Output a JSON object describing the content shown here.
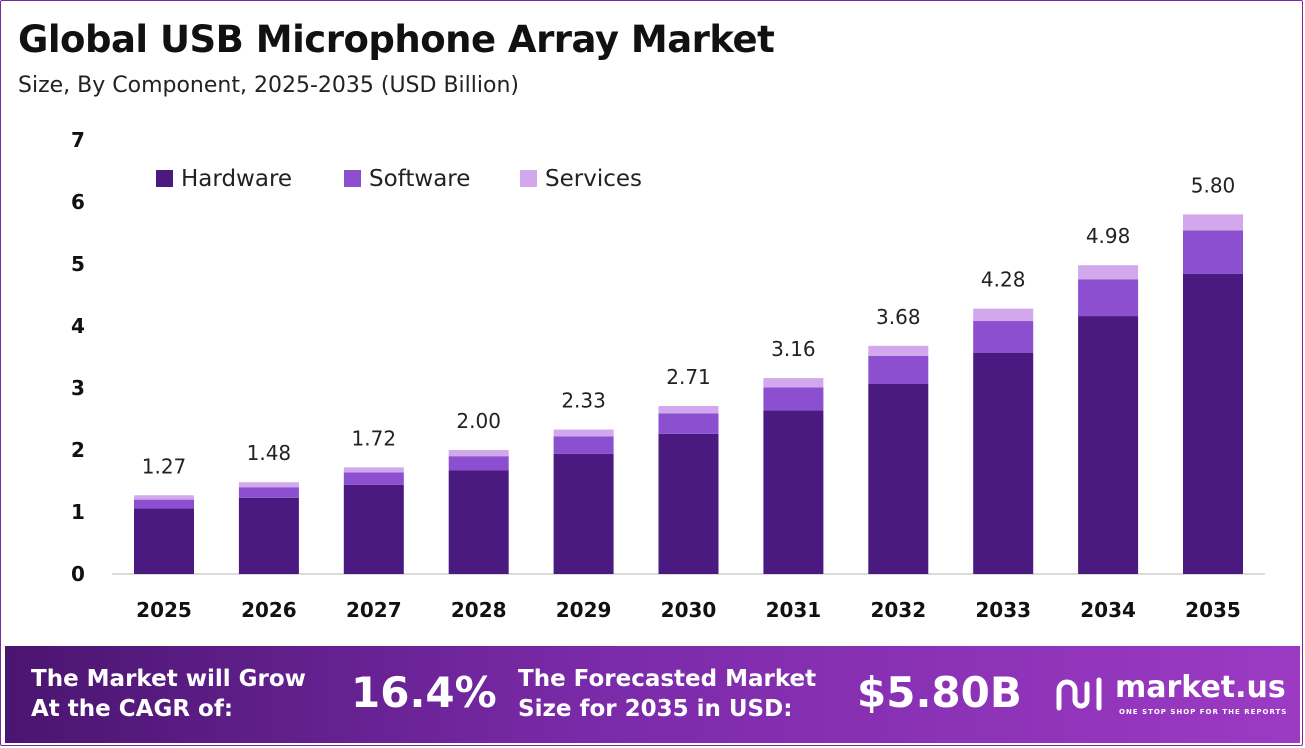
{
  "header": {
    "title": "Global USB Microphone Array Market",
    "subtitle": "Size, By Component, 2025-2035 (USD Billion)"
  },
  "chart_data": {
    "type": "bar",
    "stacked": true,
    "categories": [
      "2025",
      "2026",
      "2027",
      "2028",
      "2029",
      "2030",
      "2031",
      "2032",
      "2033",
      "2034",
      "2035"
    ],
    "series": [
      {
        "name": "Hardware",
        "color": "#4b1a80",
        "values": [
          1.06,
          1.23,
          1.44,
          1.67,
          1.94,
          2.26,
          2.64,
          3.07,
          3.57,
          4.16,
          4.84
        ]
      },
      {
        "name": "Software",
        "color": "#8b4fcf",
        "values": [
          0.14,
          0.17,
          0.2,
          0.23,
          0.28,
          0.33,
          0.37,
          0.45,
          0.51,
          0.59,
          0.7
        ]
      },
      {
        "name": "Services",
        "color": "#d2a8ec",
        "values": [
          0.07,
          0.08,
          0.08,
          0.1,
          0.11,
          0.12,
          0.15,
          0.16,
          0.2,
          0.23,
          0.26
        ]
      }
    ],
    "totals": [
      "1.27",
      "1.48",
      "1.72",
      "2.00",
      "2.33",
      "2.71",
      "3.16",
      "3.68",
      "4.28",
      "4.98",
      "5.80"
    ],
    "yticks": [
      "0",
      "1",
      "2",
      "3",
      "4",
      "5",
      "6",
      "7"
    ],
    "ylim": [
      0,
      7
    ],
    "legend_position": "top-left",
    "grid": false
  },
  "footer": {
    "cagr_label_line1": "The Market will Grow",
    "cagr_label_line2": "At the CAGR of:",
    "cagr_value": "16.4%",
    "forecast_label_line1": "The Forecasted Market",
    "forecast_label_line2": "Size for 2035 in USD:",
    "forecast_value": "$5.80B",
    "brand_name": "market.us",
    "brand_tagline": "ONE STOP SHOP FOR THE REPORTS"
  }
}
